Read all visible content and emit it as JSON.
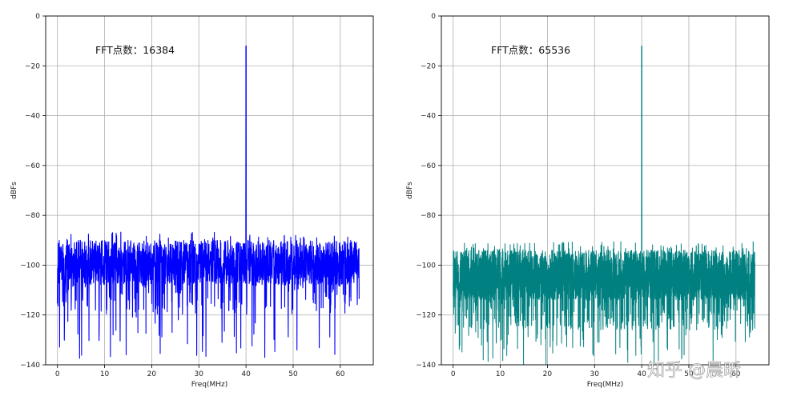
{
  "chart_data": [
    {
      "type": "line",
      "annotation": "FFT点数：16384",
      "xlabel": "Freq(MHz)",
      "ylabel": "dBFs",
      "xlim": [
        -2.5,
        67
      ],
      "ylim": [
        -140,
        0
      ],
      "xticks": [
        0,
        10,
        20,
        30,
        40,
        50,
        60
      ],
      "yticks": [
        0,
        -20,
        -40,
        -60,
        -80,
        -100,
        -120,
        -140
      ],
      "grid": true,
      "color": "#0000ff",
      "series": [
        {
          "x_range": [
            0,
            64
          ],
          "noise_floor_top": -90,
          "noise_floor_mean": -100,
          "noise_dips_min": -138,
          "peak": {
            "x": 40,
            "y": -12
          }
        }
      ]
    },
    {
      "type": "line",
      "annotation": "FFT点数：65536",
      "xlabel": "Freq(MHz)",
      "ylabel": "dBFs",
      "xlim": [
        -2.5,
        67
      ],
      "ylim": [
        -140,
        0
      ],
      "xticks": [
        0,
        10,
        20,
        30,
        40,
        50,
        60
      ],
      "yticks": [
        0,
        -20,
        -40,
        -60,
        -80,
        -100,
        -120,
        -140
      ],
      "grid": true,
      "color": "#008080",
      "series": [
        {
          "x_range": [
            0,
            64
          ],
          "noise_floor_top": -94,
          "noise_floor_mean": -106,
          "noise_dips_min": -140,
          "peak": {
            "x": 40,
            "y": -12
          }
        }
      ]
    }
  ],
  "watermark": "知乎 @晨昕"
}
